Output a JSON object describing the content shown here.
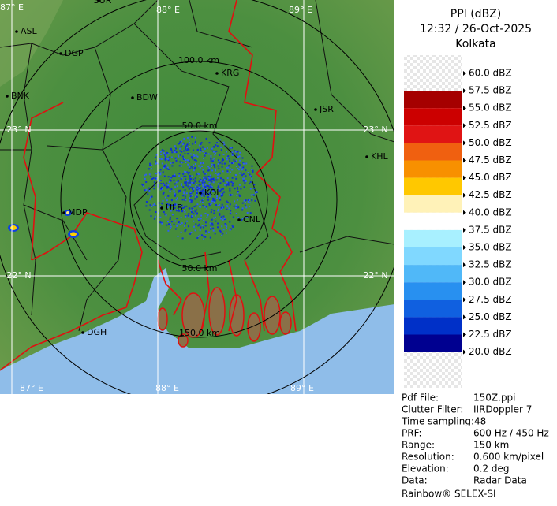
{
  "map": {
    "labels": [
      "87° E",
      "SUR",
      "88° E",
      "89° E",
      "ASL",
      "DGP",
      "BNK",
      "BDW",
      "KRG",
      "JSR",
      "100.0 km",
      "23° N",
      "23° N",
      "50.0 km",
      "KHL",
      "MDP",
      "KOL",
      "ULB",
      "CNL",
      "50.0 km",
      "22° N",
      "22° N",
      "DGH",
      "150.0 km",
      "87° E",
      "88° E",
      "89° E"
    ]
  },
  "legend": {
    "title": "PPI (dBZ)",
    "time": "12:32 / 26-Oct-2025",
    "site": "Kolkata",
    "levels": [
      "60.0 dBZ",
      "57.5 dBZ",
      "55.0 dBZ",
      "52.5 dBZ",
      "50.0 dBZ",
      "47.5 dBZ",
      "45.0 dBZ",
      "42.5 dBZ",
      "40.0 dBZ",
      "37.5 dBZ",
      "35.0 dBZ",
      "32.5 dBZ",
      "30.0 dBZ",
      "27.5 dBZ",
      "25.0 dBZ",
      "22.5 dBZ",
      "20.0 dBZ"
    ],
    "band_colors": [
      "#a50000",
      "#cc0000",
      "#e01414",
      "#f06010",
      "#f89000",
      "#ffc800",
      "#fff2b8",
      "#ffffff",
      "#a8f0ff",
      "#80d8ff",
      "#50b8f8",
      "#2890f0",
      "#1060e0",
      "#0030c8",
      "#000090"
    ]
  },
  "info": {
    "rows": [
      [
        "Pdf File:",
        "150Z.ppi"
      ],
      [
        "Clutter Filter:",
        "IIRDoppler 7"
      ],
      [
        "Time sampling:48"
      ],
      [
        "PRF:",
        "600 Hz / 450 Hz"
      ],
      [
        "Range:",
        "150 km"
      ],
      [
        "Resolution:",
        "0.600 km/pixel"
      ],
      [
        "Elevation:",
        "0.2 deg"
      ],
      [
        "Data:",
        "Radar Data"
      ]
    ],
    "footer": "Rainbow® SELEX-SI"
  }
}
